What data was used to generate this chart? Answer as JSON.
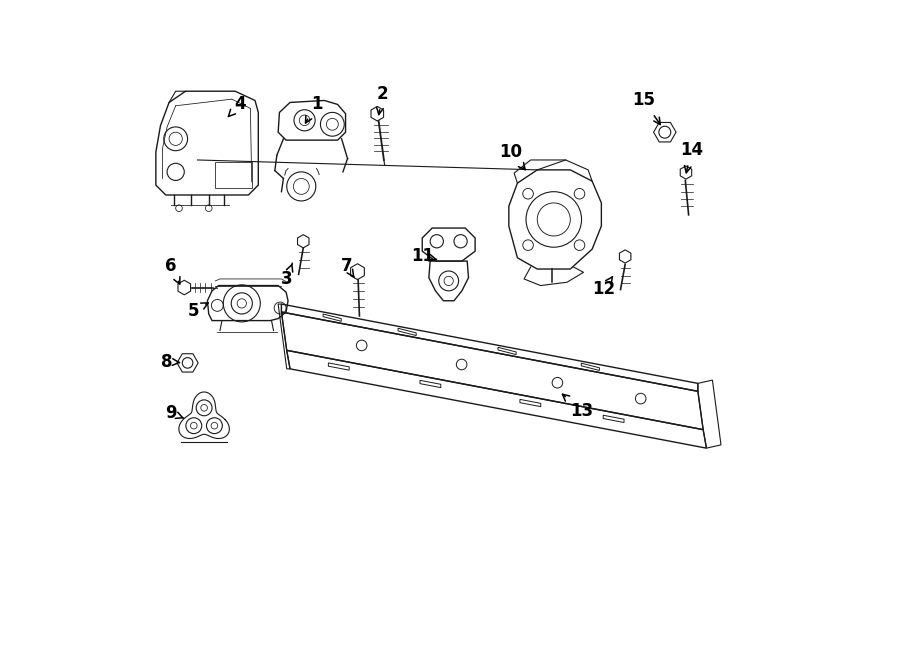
{
  "bg_color": "#ffffff",
  "line_color": "#1a1a1a",
  "lw": 0.8,
  "fig_w": 9.0,
  "fig_h": 6.61,
  "labels": [
    [
      4,
      0.183,
      0.843,
      0.163,
      0.822
    ],
    [
      1,
      0.298,
      0.843,
      0.278,
      0.808
    ],
    [
      2,
      0.398,
      0.858,
      0.391,
      0.82
    ],
    [
      3,
      0.253,
      0.578,
      0.263,
      0.606
    ],
    [
      5,
      0.112,
      0.53,
      0.14,
      0.545
    ],
    [
      6,
      0.078,
      0.598,
      0.094,
      0.564
    ],
    [
      7,
      0.343,
      0.598,
      0.358,
      0.576
    ],
    [
      8,
      0.071,
      0.453,
      0.097,
      0.451
    ],
    [
      9,
      0.078,
      0.375,
      0.098,
      0.367
    ],
    [
      10,
      0.592,
      0.77,
      0.618,
      0.738
    ],
    [
      11,
      0.458,
      0.613,
      0.485,
      0.606
    ],
    [
      12,
      0.733,
      0.563,
      0.747,
      0.583
    ],
    [
      13,
      0.7,
      0.378,
      0.665,
      0.408
    ],
    [
      14,
      0.865,
      0.773,
      0.856,
      0.732
    ],
    [
      15,
      0.793,
      0.848,
      0.822,
      0.806
    ]
  ]
}
